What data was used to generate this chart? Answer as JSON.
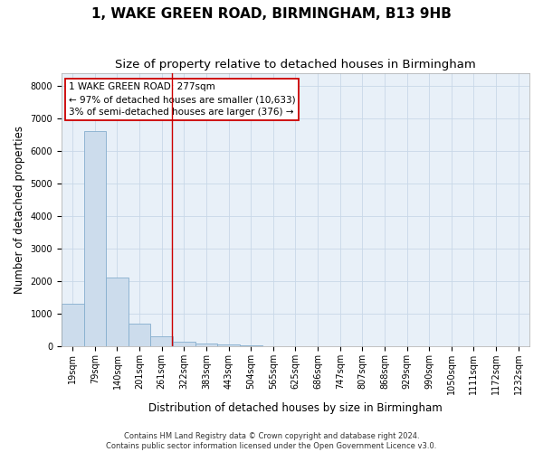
{
  "title": "1, WAKE GREEN ROAD, BIRMINGHAM, B13 9HB",
  "subtitle": "Size of property relative to detached houses in Birmingham",
  "xlabel": "Distribution of detached houses by size in Birmingham",
  "ylabel": "Number of detached properties",
  "footnote1": "Contains HM Land Registry data © Crown copyright and database right 2024.",
  "footnote2": "Contains public sector information licensed under the Open Government Licence v3.0.",
  "bin_labels": [
    "19sqm",
    "79sqm",
    "140sqm",
    "201sqm",
    "261sqm",
    "322sqm",
    "383sqm",
    "443sqm",
    "504sqm",
    "565sqm",
    "625sqm",
    "686sqm",
    "747sqm",
    "807sqm",
    "868sqm",
    "929sqm",
    "990sqm",
    "1050sqm",
    "1111sqm",
    "1172sqm",
    "1232sqm"
  ],
  "bar_values": [
    1300,
    6600,
    2100,
    700,
    300,
    150,
    80,
    55,
    25,
    10,
    4,
    2,
    0,
    0,
    0,
    0,
    0,
    0,
    0,
    0,
    0
  ],
  "bar_color": "#ccdcec",
  "bar_edge_color": "#85aece",
  "vline_x": 4.45,
  "vline_color": "#cc0000",
  "annotation_line1": "1 WAKE GREEN ROAD: 277sqm",
  "annotation_line2": "← 97% of detached houses are smaller (10,633)",
  "annotation_line3": "3% of semi-detached houses are larger (376) →",
  "annotation_box_color": "#cc0000",
  "annotation_bg": "#ffffff",
  "ylim_max": 8400,
  "yticks": [
    0,
    1000,
    2000,
    3000,
    4000,
    5000,
    6000,
    7000,
    8000
  ],
  "grid_color": "#c8d8e8",
  "bg_color": "#e8f0f8",
  "title_fontsize": 11,
  "subtitle_fontsize": 9.5,
  "xlabel_fontsize": 8.5,
  "ylabel_fontsize": 8.5,
  "tick_fontsize": 7,
  "annotation_fontsize": 7.5,
  "footnote_fontsize": 6
}
